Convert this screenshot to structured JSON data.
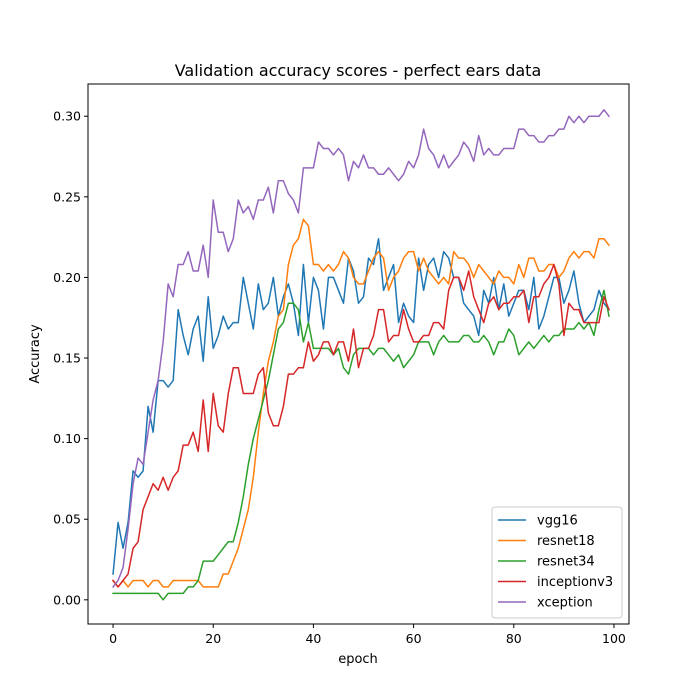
{
  "chart_data": {
    "type": "line",
    "title": "Validation accuracy scores - perfect ears data",
    "xlabel": "epoch",
    "ylabel": "Accuracy",
    "xlim": [
      -5,
      103
    ],
    "ylim": [
      -0.015,
      0.32
    ],
    "xticks": [
      0,
      20,
      40,
      60,
      80,
      100
    ],
    "yticks": [
      0.0,
      0.05,
      0.1,
      0.15,
      0.2,
      0.25,
      0.3
    ],
    "ytick_labels": [
      "0.00",
      "0.05",
      "0.10",
      "0.15",
      "0.20",
      "0.25",
      "0.30"
    ],
    "xtick_labels": [
      "0",
      "20",
      "40",
      "60",
      "80",
      "100"
    ],
    "grid": false,
    "legend_position": "lower-right",
    "x": [
      0,
      1,
      2,
      3,
      4,
      5,
      6,
      7,
      8,
      9,
      10,
      11,
      12,
      13,
      14,
      15,
      16,
      17,
      18,
      19,
      20,
      21,
      22,
      23,
      24,
      25,
      26,
      27,
      28,
      29,
      30,
      31,
      32,
      33,
      34,
      35,
      36,
      37,
      38,
      39,
      40,
      41,
      42,
      43,
      44,
      45,
      46,
      47,
      48,
      49,
      50,
      51,
      52,
      53,
      54,
      55,
      56,
      57,
      58,
      59,
      60,
      61,
      62,
      63,
      64,
      65,
      66,
      67,
      68,
      69,
      70,
      71,
      72,
      73,
      74,
      75,
      76,
      77,
      78,
      79,
      80,
      81,
      82,
      83,
      84,
      85,
      86,
      87,
      88,
      89,
      90,
      91,
      92,
      93,
      94,
      95,
      96,
      97,
      98,
      99
    ],
    "series": [
      {
        "name": "vgg16",
        "color": "#1f77b4",
        "values": [
          0.016,
          0.048,
          0.032,
          0.048,
          0.08,
          0.076,
          0.08,
          0.12,
          0.104,
          0.136,
          0.136,
          0.132,
          0.136,
          0.18,
          0.164,
          0.152,
          0.168,
          0.176,
          0.148,
          0.188,
          0.156,
          0.164,
          0.176,
          0.168,
          0.172,
          0.172,
          0.2,
          0.184,
          0.168,
          0.196,
          0.18,
          0.184,
          0.2,
          0.176,
          0.188,
          0.196,
          0.184,
          0.164,
          0.208,
          0.172,
          0.2,
          0.192,
          0.168,
          0.2,
          0.2,
          0.192,
          0.184,
          0.212,
          0.204,
          0.184,
          0.188,
          0.212,
          0.208,
          0.224,
          0.192,
          0.2,
          0.208,
          0.172,
          0.184,
          0.176,
          0.172,
          0.212,
          0.192,
          0.208,
          0.212,
          0.2,
          0.216,
          0.212,
          0.2,
          0.2,
          0.184,
          0.18,
          0.176,
          0.164,
          0.192,
          0.184,
          0.2,
          0.18,
          0.196,
          0.176,
          0.184,
          0.192,
          0.192,
          0.18,
          0.2,
          0.168,
          0.176,
          0.188,
          0.2,
          0.2,
          0.184,
          0.192,
          0.204,
          0.184,
          0.172,
          0.176,
          0.18,
          0.192,
          0.184,
          0.18
        ]
      },
      {
        "name": "resnet18",
        "color": "#ff7f0e",
        "values": [
          0.012,
          0.008,
          0.012,
          0.008,
          0.012,
          0.012,
          0.012,
          0.008,
          0.012,
          0.012,
          0.008,
          0.008,
          0.012,
          0.012,
          0.012,
          0.012,
          0.012,
          0.012,
          0.008,
          0.008,
          0.008,
          0.008,
          0.016,
          0.016,
          0.024,
          0.032,
          0.044,
          0.056,
          0.076,
          0.104,
          0.128,
          0.148,
          0.16,
          0.176,
          0.18,
          0.208,
          0.22,
          0.224,
          0.236,
          0.232,
          0.208,
          0.208,
          0.204,
          0.208,
          0.204,
          0.208,
          0.216,
          0.212,
          0.2,
          0.196,
          0.196,
          0.204,
          0.212,
          0.216,
          0.212,
          0.192,
          0.2,
          0.204,
          0.212,
          0.216,
          0.216,
          0.204,
          0.212,
          0.204,
          0.2,
          0.196,
          0.2,
          0.196,
          0.216,
          0.212,
          0.212,
          0.208,
          0.2,
          0.208,
          0.204,
          0.2,
          0.196,
          0.204,
          0.2,
          0.2,
          0.196,
          0.208,
          0.2,
          0.212,
          0.212,
          0.204,
          0.204,
          0.208,
          0.208,
          0.2,
          0.204,
          0.212,
          0.216,
          0.212,
          0.216,
          0.216,
          0.212,
          0.224,
          0.224,
          0.22
        ]
      },
      {
        "name": "resnet34",
        "color": "#2ca02c",
        "values": [
          0.004,
          0.004,
          0.004,
          0.004,
          0.004,
          0.004,
          0.004,
          0.004,
          0.004,
          0.004,
          0.0,
          0.004,
          0.004,
          0.004,
          0.004,
          0.008,
          0.008,
          0.012,
          0.024,
          0.024,
          0.024,
          0.028,
          0.032,
          0.036,
          0.036,
          0.048,
          0.064,
          0.084,
          0.1,
          0.112,
          0.124,
          0.136,
          0.152,
          0.168,
          0.172,
          0.184,
          0.184,
          0.18,
          0.16,
          0.172,
          0.156,
          0.156,
          0.156,
          0.156,
          0.152,
          0.156,
          0.144,
          0.14,
          0.152,
          0.156,
          0.156,
          0.156,
          0.152,
          0.156,
          0.156,
          0.152,
          0.148,
          0.152,
          0.144,
          0.148,
          0.152,
          0.16,
          0.16,
          0.16,
          0.152,
          0.16,
          0.164,
          0.16,
          0.16,
          0.16,
          0.164,
          0.164,
          0.16,
          0.16,
          0.164,
          0.16,
          0.152,
          0.16,
          0.16,
          0.168,
          0.164,
          0.152,
          0.156,
          0.16,
          0.156,
          0.16,
          0.164,
          0.16,
          0.164,
          0.164,
          0.168,
          0.168,
          0.168,
          0.172,
          0.168,
          0.172,
          0.164,
          0.18,
          0.192,
          0.176
        ]
      },
      {
        "name": "inceptionv3",
        "color": "#d62728",
        "values": [
          0.012,
          0.008,
          0.012,
          0.016,
          0.032,
          0.036,
          0.056,
          0.064,
          0.072,
          0.068,
          0.076,
          0.068,
          0.076,
          0.08,
          0.096,
          0.096,
          0.104,
          0.092,
          0.124,
          0.092,
          0.128,
          0.108,
          0.104,
          0.128,
          0.144,
          0.144,
          0.128,
          0.128,
          0.128,
          0.14,
          0.144,
          0.116,
          0.108,
          0.108,
          0.12,
          0.14,
          0.14,
          0.144,
          0.144,
          0.16,
          0.148,
          0.152,
          0.16,
          0.16,
          0.152,
          0.16,
          0.16,
          0.148,
          0.168,
          0.144,
          0.156,
          0.156,
          0.164,
          0.18,
          0.18,
          0.16,
          0.164,
          0.164,
          0.18,
          0.168,
          0.16,
          0.16,
          0.164,
          0.164,
          0.172,
          0.172,
          0.168,
          0.192,
          0.2,
          0.2,
          0.192,
          0.204,
          0.188,
          0.18,
          0.172,
          0.184,
          0.188,
          0.18,
          0.184,
          0.184,
          0.188,
          0.188,
          0.192,
          0.172,
          0.188,
          0.188,
          0.196,
          0.2,
          0.208,
          0.196,
          0.164,
          0.184,
          0.18,
          0.18,
          0.172,
          0.172,
          0.172,
          0.172,
          0.188,
          0.18
        ]
      },
      {
        "name": "xception",
        "color": "#9467bd",
        "values": [
          0.008,
          0.012,
          0.02,
          0.044,
          0.072,
          0.088,
          0.084,
          0.104,
          0.124,
          0.136,
          0.16,
          0.196,
          0.188,
          0.208,
          0.208,
          0.216,
          0.204,
          0.204,
          0.22,
          0.2,
          0.248,
          0.228,
          0.228,
          0.216,
          0.224,
          0.248,
          0.24,
          0.244,
          0.236,
          0.248,
          0.248,
          0.256,
          0.24,
          0.26,
          0.26,
          0.252,
          0.248,
          0.24,
          0.268,
          0.268,
          0.268,
          0.284,
          0.28,
          0.28,
          0.276,
          0.28,
          0.276,
          0.26,
          0.272,
          0.268,
          0.276,
          0.268,
          0.268,
          0.264,
          0.264,
          0.268,
          0.264,
          0.26,
          0.264,
          0.272,
          0.268,
          0.276,
          0.292,
          0.28,
          0.276,
          0.268,
          0.276,
          0.268,
          0.272,
          0.276,
          0.284,
          0.28,
          0.272,
          0.288,
          0.276,
          0.28,
          0.276,
          0.276,
          0.28,
          0.28,
          0.28,
          0.292,
          0.292,
          0.288,
          0.288,
          0.284,
          0.284,
          0.288,
          0.288,
          0.292,
          0.292,
          0.3,
          0.296,
          0.3,
          0.296,
          0.3,
          0.3,
          0.3,
          0.304,
          0.3
        ]
      }
    ]
  }
}
